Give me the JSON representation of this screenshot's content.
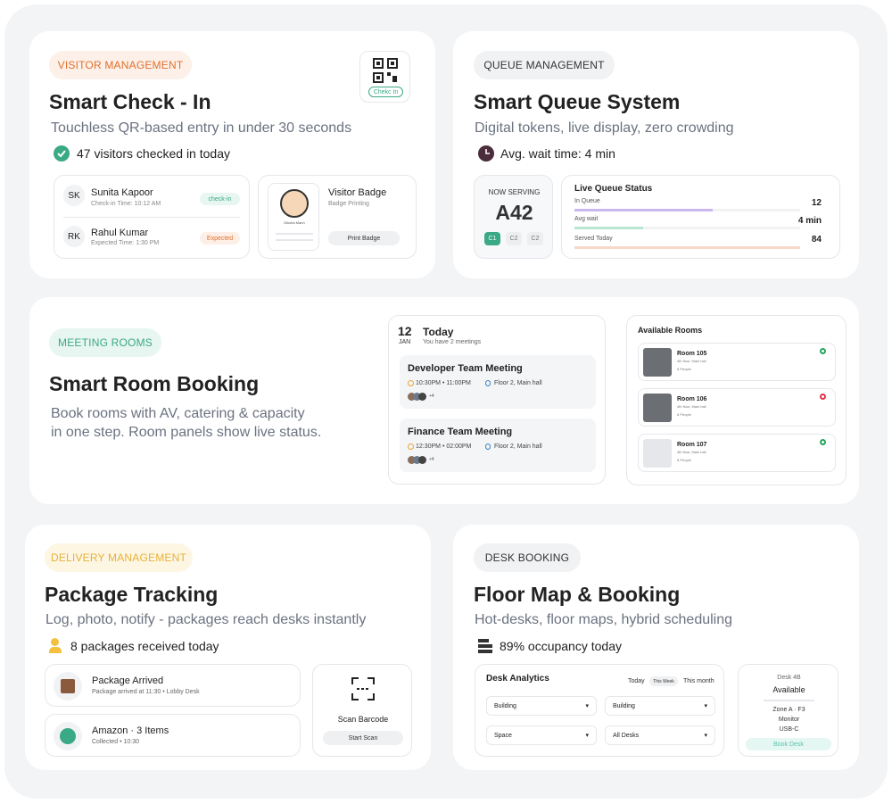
{
  "visitor": {
    "tag": "VISITOR MANAGEMENT",
    "qr_label": "Chekc In",
    "title": "Smart Check - In",
    "subtitle": "Touchless QR-based entry in under 30 seconds",
    "stat": "47 visitors checked in today",
    "visitors": [
      {
        "initials": "SK",
        "name": "Sunita Kapoor",
        "detail": "Check-in Time: 10:12 AM",
        "status": "check-in"
      },
      {
        "initials": "RK",
        "name": "Rahul Kumar",
        "detail": "Expected Time: 1:30 PM",
        "status": "Expected"
      }
    ],
    "badge": {
      "title": "Visitor Badge",
      "subtitle": "Badge Printing",
      "person": "Diksha Mann",
      "button": "Print Badge"
    }
  },
  "queue": {
    "tag": "QUEUE MANAGEMENT",
    "title": "Smart Queue System",
    "subtitle": "Digital tokens, live display, zero crowding",
    "stat": "Avg. wait time: 4 min",
    "now_serving": {
      "label": "NOW SERVING",
      "token": "A42",
      "counters": [
        "C1",
        "C2",
        "C2"
      ]
    },
    "live": {
      "title": "Live Queue Status",
      "rows": [
        {
          "label": "In Queue",
          "value": "12"
        },
        {
          "label": "Avg wait",
          "value": "4 min"
        },
        {
          "label": "Served Today",
          "value": "84"
        }
      ]
    }
  },
  "meeting": {
    "tag": "MEETING ROOMS",
    "title": "Smart Room Booking",
    "description": [
      "Book rooms with AV, catering & capacity",
      "in one step. Room panels show live status."
    ],
    "calendar": {
      "day": "12",
      "month": "JAN",
      "heading": "Today",
      "subheading": "You have 2 meetings",
      "meetings": [
        {
          "title": "Developer Team Meeting",
          "time": "10:30PM • 11:00PM",
          "location": "Floor 2, Main hall",
          "extra": "+4"
        },
        {
          "title": "Finance Team Meeting",
          "time": "12:30PM • 02:00PM",
          "location": "Floor 2, Main hall",
          "extra": "+4"
        }
      ]
    },
    "rooms": {
      "title": "Available Rooms",
      "list": [
        {
          "name": "Room 105",
          "location": "4th floor, Main hall",
          "capacity": "6 People",
          "status_color": "#22a559"
        },
        {
          "name": "Room 106",
          "location": "4th floor, Main hall",
          "capacity": "6 People",
          "status_color": "#e0344d"
        },
        {
          "name": "Room 107",
          "location": "4th floor, Main hall",
          "capacity": "6 People",
          "status_color": "#22a559"
        }
      ]
    }
  },
  "delivery": {
    "tag": "DELIVERY MANAGEMENT",
    "title": "Package Tracking",
    "subtitle": "Log, photo, notify - packages reach desks instantly",
    "stat": "8 packages received today",
    "items": [
      {
        "title": "Package Arrived",
        "detail": "Package arrived at 11:30 • Lobby Desk"
      },
      {
        "title": "Amazon · 3 Items",
        "detail": "Collected • 10:30"
      }
    ],
    "scan": {
      "title": "Scan Barcode",
      "button": "Start Scan"
    }
  },
  "desk": {
    "tag": "DESK BOOKING",
    "title": "Floor Map & Booking",
    "subtitle": "Hot-desks, floor maps, hybrid scheduling",
    "stat": "89% occupancy today",
    "analytics": {
      "title": "Desk Analytics",
      "tabs": [
        "Today",
        "This Week",
        "This month"
      ],
      "selects": [
        "Building",
        "Building",
        "Space",
        "All Desks"
      ]
    },
    "card": {
      "id": "Desk 4B",
      "status": "Available",
      "zone": "Zone A · F3",
      "details": [
        "Monitor",
        "USB-C"
      ],
      "button": "Book Desk"
    }
  }
}
